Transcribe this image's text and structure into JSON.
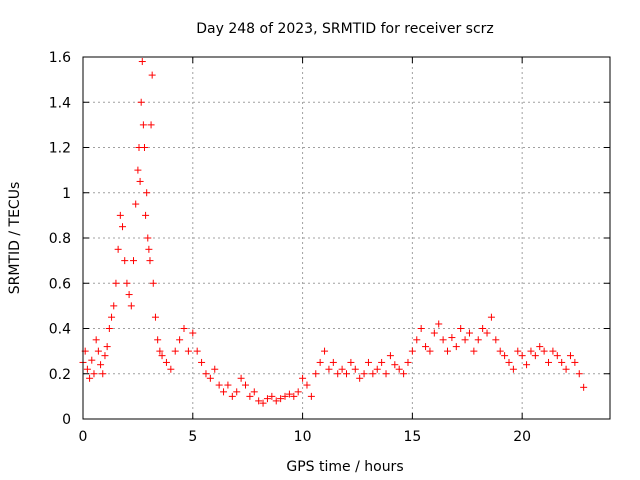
{
  "chart_data": {
    "type": "scatter",
    "title": "Day 248 of 2023, SRMTID for receiver scrz",
    "xlabel": "GPS time / hours",
    "ylabel": "SRMTID / TECUs",
    "xlim": [
      0,
      24
    ],
    "ylim": [
      0,
      1.6
    ],
    "x_ticks": [
      0,
      5,
      10,
      15,
      20
    ],
    "x_tick_labels": [
      "0",
      "5",
      "10",
      "15",
      "20"
    ],
    "y_ticks": [
      0,
      0.2,
      0.4,
      0.6,
      0.8,
      1.0,
      1.2,
      1.4,
      1.6
    ],
    "y_tick_labels": [
      "0",
      "0.2",
      "0.4",
      "0.6",
      "0.8",
      "1",
      "1.2",
      "1.4",
      "1.6"
    ],
    "grid": true,
    "marker": "+",
    "marker_color": "#ff0000",
    "series": [
      {
        "name": "SRMTID",
        "x": [
          0.0,
          0.1,
          0.2,
          0.3,
          0.4,
          0.5,
          0.6,
          0.7,
          0.8,
          0.9,
          1.0,
          1.1,
          1.2,
          1.3,
          1.4,
          1.5,
          1.6,
          1.7,
          1.8,
          1.9,
          2.0,
          2.1,
          2.2,
          2.3,
          2.4,
          2.5,
          2.55,
          2.6,
          2.65,
          2.7,
          2.75,
          2.8,
          2.85,
          2.9,
          2.95,
          3.0,
          3.05,
          3.1,
          3.15,
          3.2,
          3.3,
          3.4,
          3.5,
          3.6,
          3.8,
          4.0,
          4.2,
          4.4,
          4.6,
          4.8,
          5.0,
          5.2,
          5.4,
          5.6,
          5.8,
          6.0,
          6.2,
          6.4,
          6.6,
          6.8,
          7.0,
          7.2,
          7.4,
          7.6,
          7.8,
          8.0,
          8.2,
          8.4,
          8.6,
          8.8,
          9.0,
          9.2,
          9.4,
          9.6,
          9.8,
          10.0,
          10.2,
          10.4,
          10.6,
          10.8,
          11.0,
          11.2,
          11.4,
          11.6,
          11.8,
          12.0,
          12.2,
          12.4,
          12.6,
          12.8,
          13.0,
          13.2,
          13.4,
          13.6,
          13.8,
          14.0,
          14.2,
          14.4,
          14.6,
          14.8,
          15.0,
          15.2,
          15.4,
          15.6,
          15.8,
          16.0,
          16.2,
          16.4,
          16.6,
          16.8,
          17.0,
          17.2,
          17.4,
          17.6,
          17.8,
          18.0,
          18.2,
          18.4,
          18.6,
          18.8,
          19.0,
          19.2,
          19.4,
          19.6,
          19.8,
          20.0,
          20.2,
          20.4,
          20.6,
          20.8,
          21.0,
          21.2,
          21.4,
          21.6,
          21.8,
          22.0,
          22.2,
          22.4,
          22.6,
          22.8
        ],
        "y": [
          0.25,
          0.3,
          0.22,
          0.18,
          0.26,
          0.2,
          0.35,
          0.3,
          0.24,
          0.2,
          0.28,
          0.32,
          0.4,
          0.45,
          0.5,
          0.6,
          0.75,
          0.9,
          0.85,
          0.7,
          0.6,
          0.55,
          0.5,
          0.7,
          0.95,
          1.1,
          1.2,
          1.05,
          1.4,
          1.58,
          1.3,
          1.2,
          0.9,
          1.0,
          0.8,
          0.75,
          0.7,
          1.3,
          1.52,
          0.6,
          0.45,
          0.35,
          0.3,
          0.28,
          0.25,
          0.22,
          0.3,
          0.35,
          0.4,
          0.3,
          0.38,
          0.3,
          0.25,
          0.2,
          0.18,
          0.22,
          0.15,
          0.12,
          0.15,
          0.1,
          0.12,
          0.18,
          0.15,
          0.1,
          0.12,
          0.08,
          0.07,
          0.09,
          0.1,
          0.08,
          0.09,
          0.1,
          0.11,
          0.1,
          0.12,
          0.18,
          0.15,
          0.1,
          0.2,
          0.25,
          0.3,
          0.22,
          0.25,
          0.2,
          0.22,
          0.2,
          0.25,
          0.22,
          0.18,
          0.2,
          0.25,
          0.2,
          0.22,
          0.25,
          0.2,
          0.28,
          0.24,
          0.22,
          0.2,
          0.25,
          0.3,
          0.35,
          0.4,
          0.32,
          0.3,
          0.38,
          0.42,
          0.35,
          0.3,
          0.36,
          0.32,
          0.4,
          0.35,
          0.38,
          0.3,
          0.35,
          0.4,
          0.38,
          0.45,
          0.35,
          0.3,
          0.28,
          0.25,
          0.22,
          0.3,
          0.28,
          0.24,
          0.3,
          0.28,
          0.32,
          0.3,
          0.25,
          0.3,
          0.28,
          0.25,
          0.22,
          0.28,
          0.25,
          0.2,
          0.14
        ]
      }
    ]
  }
}
